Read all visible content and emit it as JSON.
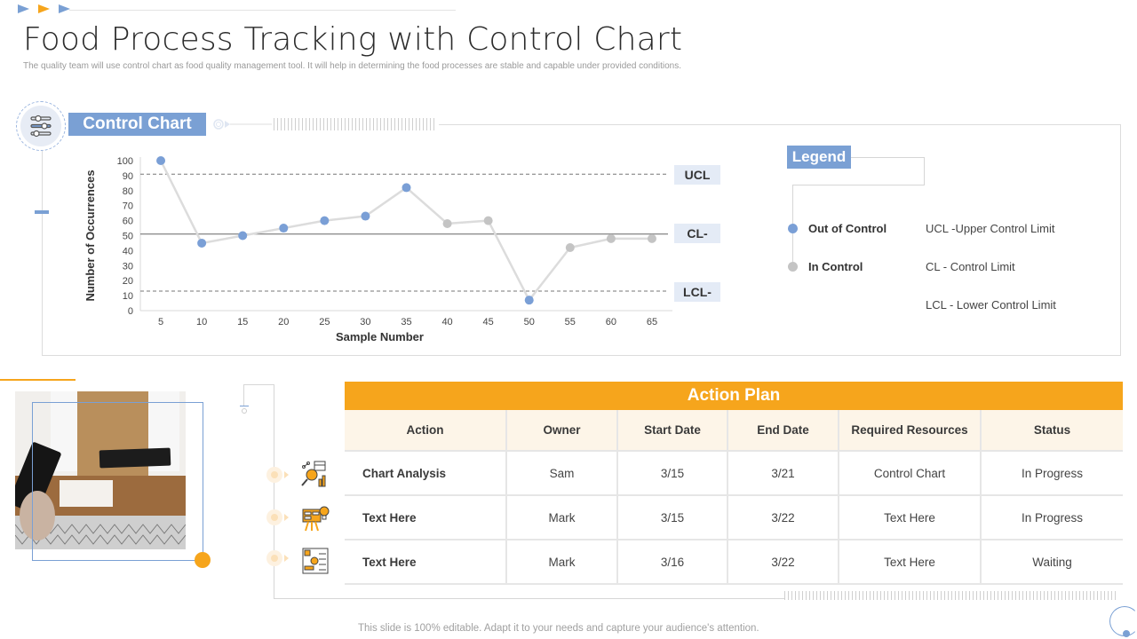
{
  "header": {
    "title": "Food Process Tracking with Control Chart",
    "subtitle": "The quality team will use control chart as food quality management tool. It will help in determining the food processes are stable and capable under provided conditions."
  },
  "control_chart": {
    "section_label": "Control Chart",
    "icon": "sliders-icon",
    "limit_labels": {
      "ucl": "UCL",
      "cl": "CL-",
      "lcl": "LCL-"
    }
  },
  "legend": {
    "title": "Legend",
    "items": [
      {
        "label": "Out of Control",
        "color": "#7a9fd6"
      },
      {
        "label": "In Control",
        "color": "#c4c4c4"
      }
    ],
    "definitions": [
      "UCL -Upper  Control Limit",
      "CL  - Control Limit",
      "LCL  - Lower  Control Limit"
    ]
  },
  "chart_data": {
    "type": "line",
    "title": "Control Chart",
    "xlabel": "Sample Number",
    "ylabel": "Number of Occurrences",
    "x": [
      5,
      10,
      15,
      20,
      25,
      30,
      35,
      40,
      45,
      50,
      55,
      60,
      65
    ],
    "series": [
      {
        "name": "Occurrences",
        "values": [
          100,
          45,
          50,
          55,
          60,
          63,
          82,
          58,
          60,
          7,
          42,
          48,
          48
        ],
        "status": [
          "out",
          "out",
          "out",
          "out",
          "out",
          "out",
          "out",
          "in",
          "in",
          "out",
          "in",
          "in",
          "in"
        ]
      }
    ],
    "control_limits": {
      "UCL": 91,
      "CL": 51,
      "LCL": 13
    },
    "ylim": [
      0,
      100
    ],
    "yticks": [
      0,
      10,
      20,
      30,
      40,
      50,
      60,
      70,
      80,
      90,
      100
    ],
    "colors": {
      "out_of_control": "#7a9fd6",
      "in_control": "#c4c4c4",
      "line": "#dcdcdc"
    },
    "legend": [
      "Out of Control",
      "In Control"
    ],
    "grid": false
  },
  "action_plan": {
    "title": "Action Plan",
    "columns": [
      "Action",
      "Owner",
      "Start Date",
      "End Date",
      "Required Resources",
      "Status"
    ],
    "rows": [
      {
        "icon": "chart-analysis-icon",
        "cells": [
          "Chart Analysis",
          "Sam",
          "3/15",
          "3/21",
          "Control Chart",
          "In Progress"
        ]
      },
      {
        "icon": "presentation-idea-icon",
        "cells": [
          "Text Here",
          "Mark",
          "3/15",
          "3/22",
          "Text Here",
          "In Progress"
        ]
      },
      {
        "icon": "process-flow-icon",
        "cells": [
          "Text Here",
          "Mark",
          "3/16",
          "3/22",
          "Text Here",
          "Waiting"
        ]
      }
    ]
  },
  "colors": {
    "accent_blue": "#7aa0d4",
    "accent_orange": "#f6a51c",
    "header_row_bg": "#fdf5e8"
  },
  "footer": {
    "text": "This slide is 100% editable. Adapt it to your needs and capture your audience's attention."
  }
}
